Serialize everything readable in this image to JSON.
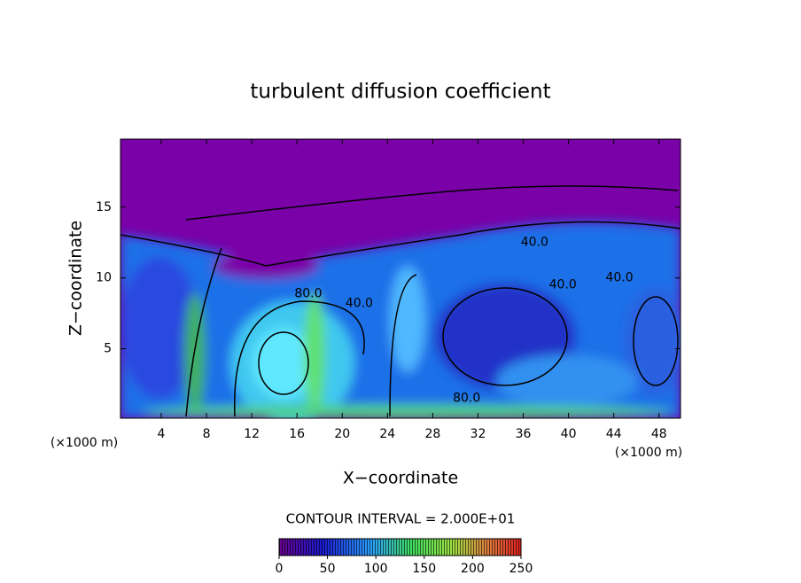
{
  "chart_data": {
    "type": "contour",
    "title": "turbulent diffusion coefficient",
    "x_label": "X−coordinate",
    "y_label": "Z−coordinate",
    "x_unit_left": "(×1000 m)",
    "x_unit_right": "(×1000 m)",
    "xlim": [
      0.4,
      49.9
    ],
    "ylim": [
      0.1,
      19.8
    ],
    "xticks": [
      4,
      8,
      12,
      16,
      20,
      24,
      28,
      32,
      36,
      40,
      44,
      48
    ],
    "yticks": [
      5,
      10,
      15
    ],
    "contour_interval_label": "CONTOUR INTERVAL = 2.000E+01",
    "clim": [
      0,
      250
    ],
    "colorbar_ticks": [
      0,
      50,
      100,
      150,
      200,
      250
    ],
    "contour_labels": [
      {
        "text": "80.0",
        "x": 17.0,
        "y": 8.9
      },
      {
        "text": "40.0",
        "x": 21.5,
        "y": 8.2
      },
      {
        "text": "40.0",
        "x": 37.0,
        "y": 12.5
      },
      {
        "text": "40.0",
        "x": 39.5,
        "y": 9.5
      },
      {
        "text": "40.0",
        "x": 44.5,
        "y": 10.0
      },
      {
        "text": "80.0",
        "x": 31.0,
        "y": 1.5
      }
    ]
  }
}
